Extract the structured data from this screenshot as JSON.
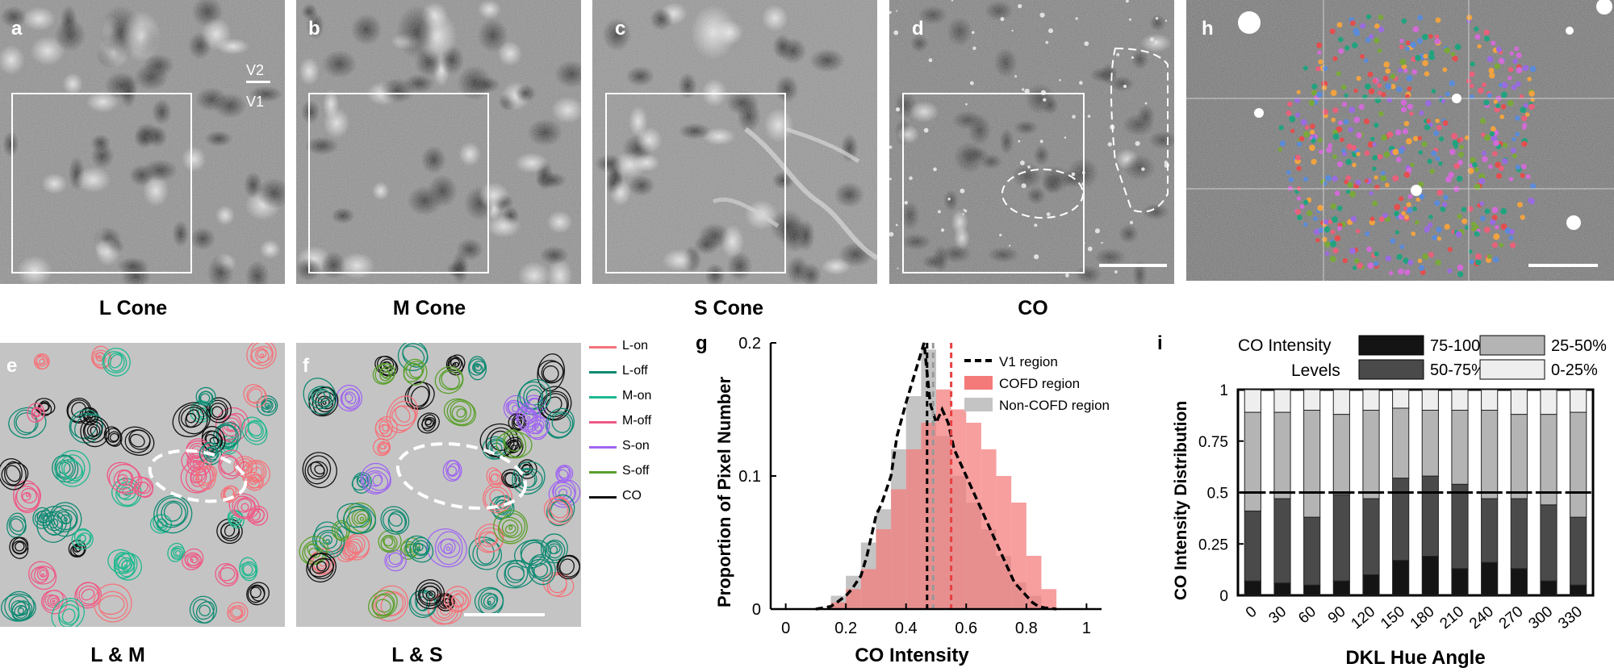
{
  "panels": {
    "a": {
      "label": "a",
      "caption": "L Cone",
      "v2": "V2",
      "v1": "V1"
    },
    "b": {
      "label": "b",
      "caption": "M Cone"
    },
    "c": {
      "label": "c",
      "caption": "S Cone"
    },
    "d": {
      "label": "d",
      "caption": "CO"
    },
    "h": {
      "label": "h"
    },
    "e": {
      "label": "e",
      "caption": "L & M"
    },
    "f": {
      "label": "f",
      "caption": "L & S"
    }
  },
  "contour_legend": [
    {
      "label": "L-on",
      "color": "#f4737a"
    },
    {
      "label": "L-off",
      "color": "#0f8a73"
    },
    {
      "label": "M-on",
      "color": "#1fb88f"
    },
    {
      "label": "M-off",
      "color": "#ee5a86"
    },
    {
      "label": "S-on",
      "color": "#a067f0"
    },
    {
      "label": "S-off",
      "color": "#5aa02c"
    },
    {
      "label": "CO",
      "color": "#111111"
    }
  ],
  "colors": {
    "cofd": "#f47a7a",
    "noncofd": "#c4c4c4",
    "overlap": "#c98b8b",
    "v1line": "#000000",
    "co_dark": "#141414",
    "co_mid": "#4a4a4a",
    "co_light": "#b4b4b4",
    "co_lightest": "#eeeeee"
  },
  "chart_data": [
    {
      "panel": "g",
      "type": "area",
      "title": "",
      "xlabel": "CO Intensity",
      "ylabel": "Proportion of Pixel Number",
      "xlim": [
        -0.05,
        1.05
      ],
      "ylim": [
        0,
        0.2
      ],
      "xticks": [
        "0",
        "0.2",
        "0.4",
        "0.6",
        "0.8",
        "1"
      ],
      "yticks": [
        "0",
        "0.1",
        "0.2"
      ],
      "legend": [
        "V1 region",
        "COFD region",
        "Non-COFD region"
      ],
      "legend_position": "top-right",
      "bin_edges": [
        0.1,
        0.15,
        0.2,
        0.25,
        0.3,
        0.35,
        0.4,
        0.45,
        0.5,
        0.55,
        0.6,
        0.65,
        0.7,
        0.75,
        0.8,
        0.85,
        0.9
      ],
      "series": [
        {
          "name": "COFD region",
          "style": "filled",
          "values": [
            0.0,
            0.005,
            0.015,
            0.03,
            0.06,
            0.09,
            0.12,
            0.14,
            0.165,
            0.15,
            0.14,
            0.12,
            0.1,
            0.08,
            0.04,
            0.015
          ]
        },
        {
          "name": "Non-COFD region",
          "style": "filled",
          "values": [
            0.0,
            0.01,
            0.025,
            0.05,
            0.075,
            0.12,
            0.16,
            0.195,
            0.13,
            0.1,
            0.08,
            0.06,
            0.04,
            0.02,
            0.01,
            0.0
          ]
        },
        {
          "name": "V1 region",
          "style": "dashed-line",
          "x": [
            0.1,
            0.15,
            0.17,
            0.2,
            0.22,
            0.25,
            0.27,
            0.3,
            0.32,
            0.35,
            0.37,
            0.4,
            0.42,
            0.44,
            0.46,
            0.48,
            0.5,
            0.52,
            0.54,
            0.56,
            0.58,
            0.6,
            0.62,
            0.64,
            0.66,
            0.68,
            0.7,
            0.72,
            0.74,
            0.76,
            0.78,
            0.8,
            0.82,
            0.84,
            0.86,
            0.9
          ],
          "values": [
            0.0,
            0.002,
            0.005,
            0.01,
            0.015,
            0.025,
            0.04,
            0.07,
            0.08,
            0.1,
            0.13,
            0.155,
            0.17,
            0.185,
            0.2,
            0.155,
            0.14,
            0.15,
            0.14,
            0.12,
            0.11,
            0.1,
            0.09,
            0.08,
            0.07,
            0.06,
            0.05,
            0.04,
            0.03,
            0.02,
            0.015,
            0.01,
            0.005,
            0.002,
            0.001,
            0.0
          ]
        }
      ],
      "vlines": [
        {
          "x": 0.47,
          "color": "#000000"
        },
        {
          "x": 0.49,
          "color": "#999999"
        },
        {
          "x": 0.55,
          "color": "#e84040"
        }
      ]
    },
    {
      "panel": "i",
      "type": "bar",
      "stacked": true,
      "title": "",
      "xlabel": "DKL Hue Angle",
      "ylabel": "CO Intensity Distribution",
      "categories": [
        "0",
        "30",
        "60",
        "90",
        "120",
        "150",
        "180",
        "210",
        "240",
        "270",
        "300",
        "330"
      ],
      "ylim": [
        0,
        1
      ],
      "yticks": [
        "0",
        "0.25",
        "0.5",
        "0.75",
        "1"
      ],
      "legend_title": [
        "CO Intensity",
        "Levels"
      ],
      "legend": [
        "75-100%",
        "50-75%",
        "25-50%",
        "0-25%"
      ],
      "legend_position": "top",
      "series": [
        {
          "name": "75-100%",
          "values": [
            0.07,
            0.06,
            0.05,
            0.07,
            0.1,
            0.17,
            0.19,
            0.13,
            0.16,
            0.13,
            0.07,
            0.05
          ]
        },
        {
          "name": "50-75%",
          "values": [
            0.34,
            0.41,
            0.33,
            0.42,
            0.37,
            0.4,
            0.39,
            0.41,
            0.31,
            0.34,
            0.37,
            0.33
          ]
        },
        {
          "name": "25-50%",
          "values": [
            0.48,
            0.42,
            0.52,
            0.39,
            0.43,
            0.34,
            0.32,
            0.36,
            0.43,
            0.41,
            0.44,
            0.51
          ]
        },
        {
          "name": "0-25%",
          "values": [
            0.11,
            0.11,
            0.1,
            0.12,
            0.1,
            0.09,
            0.1,
            0.1,
            0.1,
            0.12,
            0.12,
            0.11
          ]
        }
      ]
    }
  ]
}
